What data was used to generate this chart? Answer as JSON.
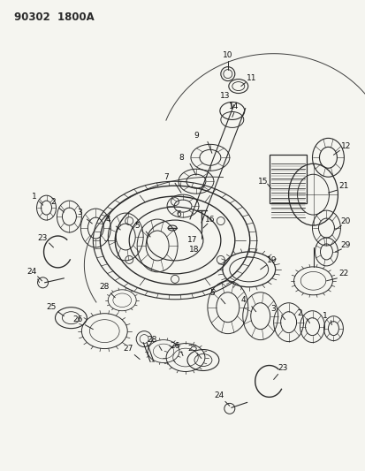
{
  "title": "90302  1800A",
  "bg_color": "#f5f5f0",
  "fig_width": 4.14,
  "fig_height": 5.33,
  "dpi": 100,
  "line_color": "#2a2a2a",
  "label_color": "#111111",
  "label_fs": 6.0
}
